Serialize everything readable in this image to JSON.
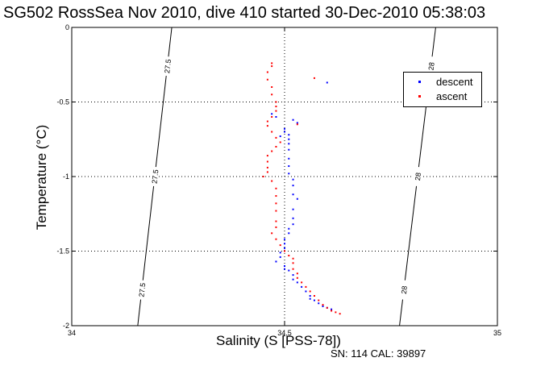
{
  "title": "SG502 RossSea Nov 2010, dive 410 started 30-Dec-2010 05:38:03",
  "caption": "SN: 114  CAL: 39897",
  "chart_data": {
    "type": "scatter",
    "xlabel": "Salinity (S [PSS-78])",
    "ylabel": "Temperature (°C)",
    "xlim": [
      34,
      35
    ],
    "ylim": [
      -2,
      0
    ],
    "xticks": [
      "34",
      "34.5",
      "35"
    ],
    "yticks": [
      "0",
      "-0.5",
      "-1",
      "-1.5",
      "-2"
    ],
    "grid": true,
    "legend_position": "top-right",
    "series": [
      {
        "name": "descent",
        "color": "#0000ff",
        "points": [
          [
            34.52,
            -0.62
          ],
          [
            34.53,
            -0.64
          ],
          [
            34.5,
            -0.7
          ],
          [
            34.51,
            -0.72
          ],
          [
            34.49,
            -0.73
          ],
          [
            34.51,
            -0.75
          ],
          [
            34.5,
            -0.68
          ],
          [
            34.51,
            -0.78
          ],
          [
            34.51,
            -0.82
          ],
          [
            34.51,
            -0.88
          ],
          [
            34.51,
            -0.93
          ],
          [
            34.51,
            -0.98
          ],
          [
            34.52,
            -1.02
          ],
          [
            34.52,
            -1.06
          ],
          [
            34.52,
            -1.12
          ],
          [
            34.53,
            -1.15
          ],
          [
            34.52,
            -1.22
          ],
          [
            34.52,
            -1.28
          ],
          [
            34.52,
            -1.32
          ],
          [
            34.51,
            -1.35
          ],
          [
            34.51,
            -1.38
          ],
          [
            34.5,
            -1.42
          ],
          [
            34.5,
            -1.45
          ],
          [
            34.5,
            -1.48
          ],
          [
            34.49,
            -1.51
          ],
          [
            34.49,
            -1.54
          ],
          [
            34.48,
            -1.57
          ],
          [
            34.5,
            -1.6
          ],
          [
            34.51,
            -1.63
          ],
          [
            34.52,
            -1.66
          ],
          [
            34.52,
            -1.69
          ],
          [
            34.53,
            -1.71
          ],
          [
            34.54,
            -1.74
          ],
          [
            34.55,
            -1.77
          ],
          [
            34.56,
            -1.8
          ],
          [
            34.57,
            -1.83
          ],
          [
            34.58,
            -1.85
          ],
          [
            34.59,
            -1.87
          ],
          [
            34.6,
            -1.88
          ],
          [
            34.61,
            -1.89
          ],
          [
            34.56,
            -1.82
          ],
          [
            34.5,
            -1.62
          ],
          [
            34.47,
            -0.58
          ],
          [
            34.48,
            -0.6
          ],
          [
            34.6,
            -0.37
          ]
        ]
      },
      {
        "name": "ascent",
        "color": "#ff0000",
        "points": [
          [
            34.47,
            -0.24
          ],
          [
            34.47,
            -0.26
          ],
          [
            34.46,
            -0.3
          ],
          [
            34.46,
            -0.35
          ],
          [
            34.47,
            -0.4
          ],
          [
            34.47,
            -0.45
          ],
          [
            34.48,
            -0.5
          ],
          [
            34.48,
            -0.53
          ],
          [
            34.48,
            -0.56
          ],
          [
            34.47,
            -0.6
          ],
          [
            34.46,
            -0.63
          ],
          [
            34.46,
            -0.66
          ],
          [
            34.47,
            -0.7
          ],
          [
            34.48,
            -0.74
          ],
          [
            34.49,
            -0.77
          ],
          [
            34.48,
            -0.8
          ],
          [
            34.47,
            -0.83
          ],
          [
            34.46,
            -0.86
          ],
          [
            34.46,
            -0.9
          ],
          [
            34.46,
            -0.94
          ],
          [
            34.46,
            -0.97
          ],
          [
            34.45,
            -1.0
          ],
          [
            34.47,
            -1.03
          ],
          [
            34.48,
            -1.08
          ],
          [
            34.48,
            -1.13
          ],
          [
            34.48,
            -1.18
          ],
          [
            34.48,
            -1.23
          ],
          [
            34.48,
            -1.3
          ],
          [
            34.48,
            -1.34
          ],
          [
            34.47,
            -1.38
          ],
          [
            34.48,
            -1.42
          ],
          [
            34.49,
            -1.46
          ],
          [
            34.5,
            -1.5
          ],
          [
            34.51,
            -1.53
          ],
          [
            34.52,
            -1.55
          ],
          [
            34.52,
            -1.58
          ],
          [
            34.52,
            -1.62
          ],
          [
            34.53,
            -1.65
          ],
          [
            34.53,
            -1.68
          ],
          [
            34.54,
            -1.71
          ],
          [
            34.55,
            -1.74
          ],
          [
            34.56,
            -1.77
          ],
          [
            34.57,
            -1.8
          ],
          [
            34.58,
            -1.83
          ],
          [
            34.59,
            -1.86
          ],
          [
            34.6,
            -1.88
          ],
          [
            34.61,
            -1.9
          ],
          [
            34.62,
            -1.91
          ],
          [
            34.63,
            -1.92
          ],
          [
            34.57,
            -0.34
          ],
          [
            34.53,
            -0.65
          ]
        ]
      }
    ],
    "isopycnals": [
      {
        "label": "27.5",
        "from": [
          34.155,
          -2
        ],
        "to": [
          34.235,
          0
        ]
      },
      {
        "label": "28",
        "from": [
          34.77,
          -2
        ],
        "to": [
          34.855,
          0
        ]
      }
    ]
  }
}
